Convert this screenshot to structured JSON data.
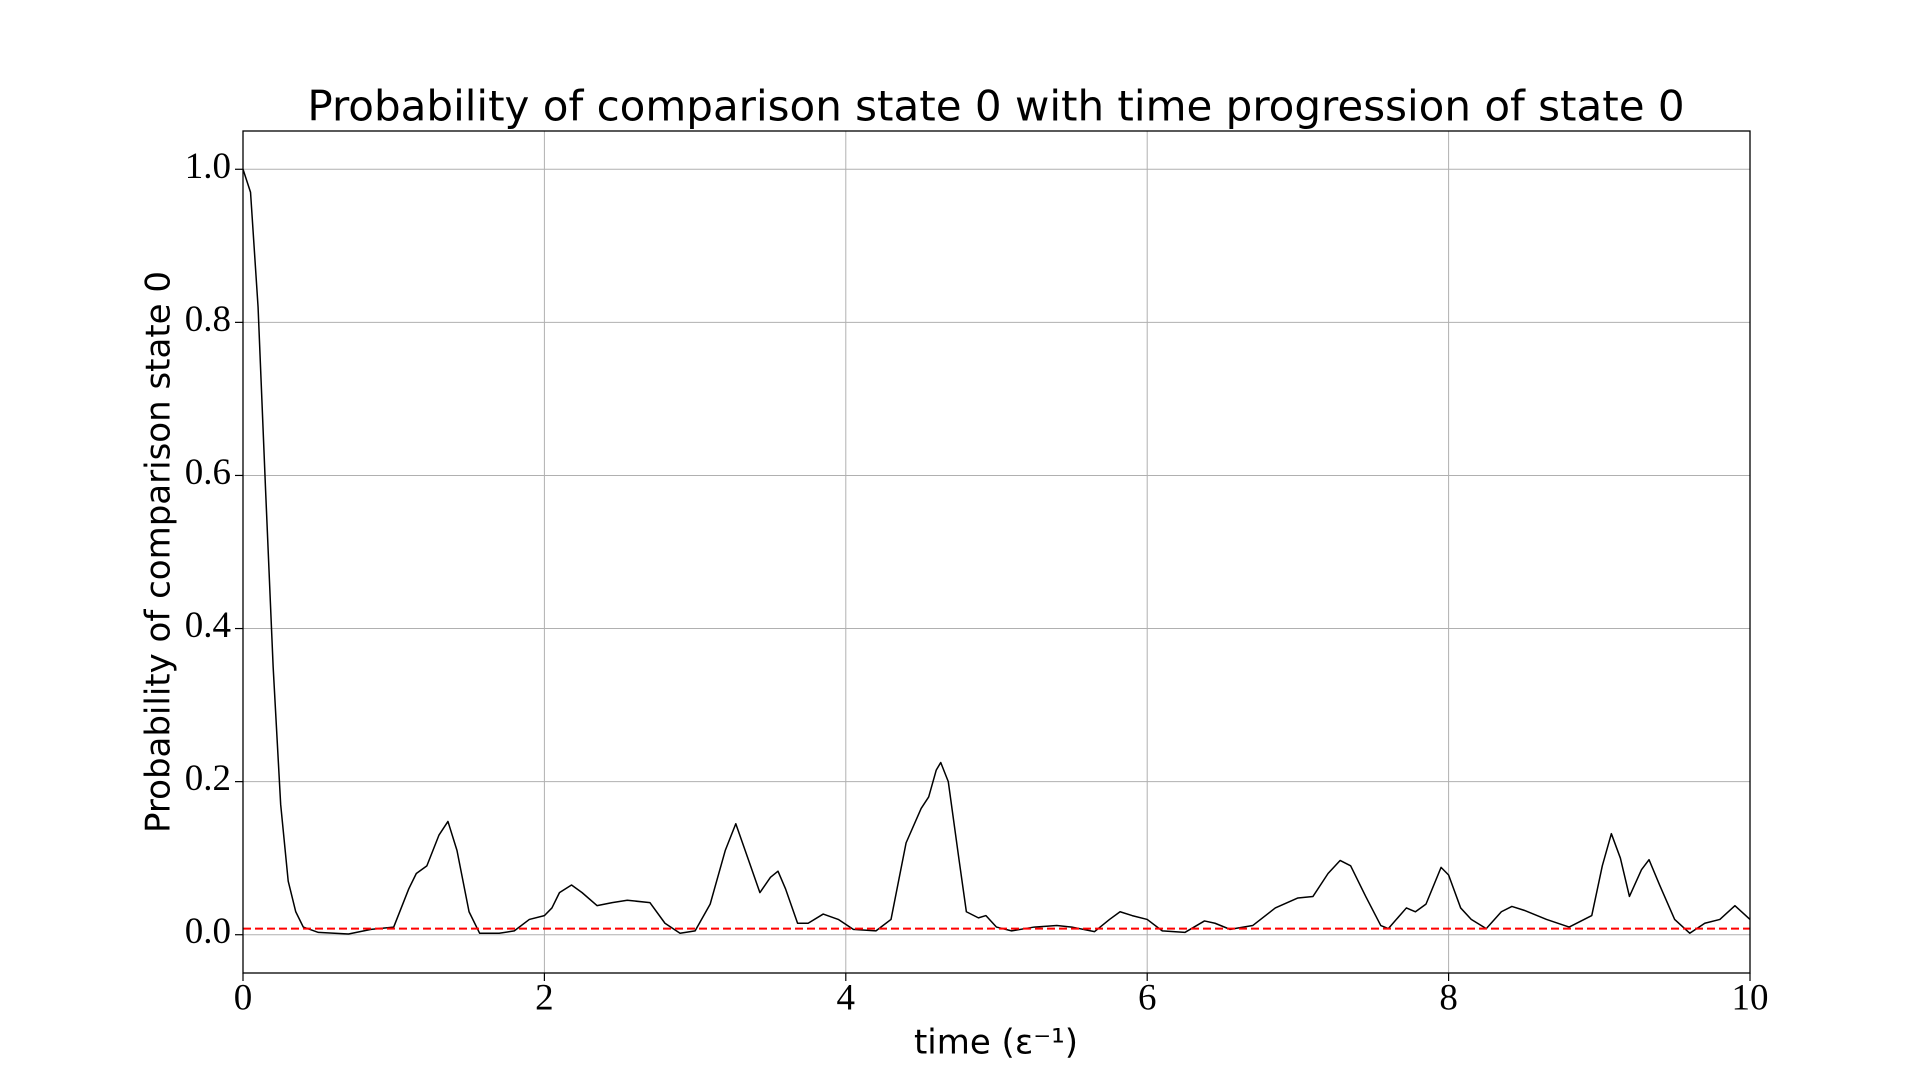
{
  "chart_data": {
    "type": "line",
    "title": "Probability of comparison state 0 with time progression of state 0",
    "x_label": "time (ε⁻¹)",
    "y_label": "Probability of comparison state 0",
    "x": [
      0,
      0.05,
      0.1,
      0.15,
      0.2,
      0.25,
      0.3,
      0.35,
      0.4,
      0.5,
      0.7,
      0.85,
      1.0,
      1.1,
      1.15,
      1.22,
      1.3,
      1.36,
      1.42,
      1.5,
      1.57,
      1.7,
      1.8,
      1.9,
      2.0,
      2.05,
      2.1,
      2.18,
      2.25,
      2.35,
      2.45,
      2.55,
      2.7,
      2.8,
      2.9,
      3.0,
      3.1,
      3.2,
      3.27,
      3.35,
      3.43,
      3.5,
      3.55,
      3.6,
      3.68,
      3.75,
      3.85,
      3.95,
      4.05,
      4.2,
      4.3,
      4.4,
      4.5,
      4.55,
      4.6,
      4.63,
      4.68,
      4.75,
      4.8,
      4.88,
      4.93,
      5.0,
      5.1,
      5.25,
      5.4,
      5.5,
      5.65,
      5.75,
      5.82,
      5.9,
      6.0,
      6.1,
      6.25,
      6.38,
      6.45,
      6.55,
      6.7,
      6.85,
      7.0,
      7.1,
      7.2,
      7.28,
      7.35,
      7.45,
      7.55,
      7.6,
      7.72,
      7.78,
      7.85,
      7.95,
      8.0,
      8.08,
      8.15,
      8.25,
      8.35,
      8.42,
      8.5,
      8.65,
      8.8,
      8.95,
      9.02,
      9.08,
      9.14,
      9.2,
      9.28,
      9.33,
      9.4,
      9.5,
      9.6,
      9.7,
      9.8,
      9.9,
      10.0
    ],
    "values": [
      1.0,
      0.97,
      0.82,
      0.58,
      0.35,
      0.17,
      0.07,
      0.03,
      0.01,
      0.003,
      0.001,
      0.007,
      0.01,
      0.06,
      0.08,
      0.09,
      0.13,
      0.148,
      0.11,
      0.03,
      0.002,
      0.002,
      0.005,
      0.02,
      0.025,
      0.035,
      0.055,
      0.065,
      0.055,
      0.038,
      0.042,
      0.045,
      0.042,
      0.015,
      0.002,
      0.005,
      0.04,
      0.11,
      0.145,
      0.1,
      0.055,
      0.075,
      0.083,
      0.06,
      0.015,
      0.015,
      0.027,
      0.02,
      0.007,
      0.005,
      0.02,
      0.12,
      0.165,
      0.18,
      0.215,
      0.225,
      0.2,
      0.1,
      0.03,
      0.022,
      0.025,
      0.01,
      0.005,
      0.01,
      0.012,
      0.01,
      0.004,
      0.02,
      0.03,
      0.025,
      0.02,
      0.005,
      0.003,
      0.018,
      0.015,
      0.007,
      0.012,
      0.035,
      0.048,
      0.05,
      0.08,
      0.097,
      0.09,
      0.05,
      0.012,
      0.008,
      0.035,
      0.03,
      0.04,
      0.088,
      0.078,
      0.035,
      0.02,
      0.008,
      0.03,
      0.037,
      0.032,
      0.02,
      0.01,
      0.025,
      0.09,
      0.132,
      0.1,
      0.05,
      0.085,
      0.098,
      0.065,
      0.02,
      0.002,
      0.015,
      0.02,
      0.038,
      0.02
    ],
    "color": "#000000",
    "hline": {
      "value": 0.008,
      "color": "#ff0000"
    },
    "xlim": [
      0,
      10
    ],
    "ylim": [
      -0.05,
      1.05
    ],
    "xticks": [
      0,
      2,
      4,
      6,
      8,
      10
    ],
    "yticks": [
      {
        "value": 0,
        "label": "0.0"
      },
      0.2,
      0.4,
      0.6,
      0.8,
      {
        "value": 1,
        "label": "1.0"
      }
    ],
    "grid": true
  }
}
